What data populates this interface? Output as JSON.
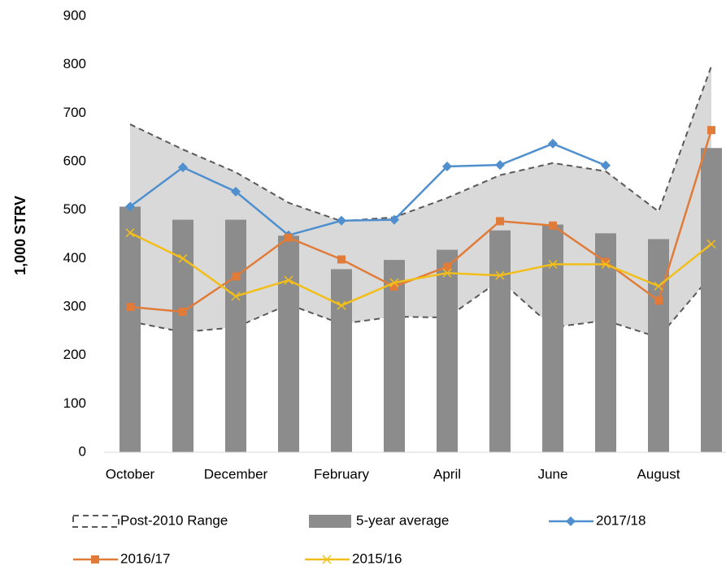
{
  "chart_data": {
    "type": "combo",
    "y_label": "1,000 STRV",
    "categories": [
      "October",
      null,
      "December",
      null,
      "February",
      null,
      "April",
      null,
      "June",
      null,
      "August",
      null
    ],
    "ylim": [
      0,
      900
    ],
    "yticks": [
      0,
      100,
      200,
      300,
      400,
      500,
      600,
      700,
      800,
      900
    ],
    "series": [
      {
        "name": "Post-2010 Range",
        "type": "range",
        "color": "#d9d9d9",
        "upper": [
          677,
          625,
          578,
          515,
          477,
          485,
          525,
          572,
          597,
          580,
          497,
          797
        ],
        "lower": [
          270,
          248,
          258,
          305,
          265,
          280,
          278,
          355,
          258,
          272,
          237,
          365
        ]
      },
      {
        "name": "5-year average",
        "type": "bar",
        "color": "#8c8c8c",
        "values": [
          507,
          480,
          480,
          447,
          378,
          397,
          418,
          458,
          470,
          452,
          440,
          628
        ]
      },
      {
        "name": "2017/18",
        "type": "line",
        "marker": "diamond",
        "color": "#4f8fce",
        "values": [
          507,
          588,
          538,
          448,
          478,
          480,
          590,
          593,
          637,
          592,
          null,
          null
        ]
      },
      {
        "name": "2016/17",
        "type": "line",
        "marker": "square",
        "color": "#e07b39",
        "values": [
          300,
          290,
          363,
          443,
          398,
          342,
          383,
          477,
          468,
          393,
          313,
          665
        ]
      },
      {
        "name": "2015/16",
        "type": "line",
        "marker": "x",
        "color": "#f2be1a",
        "values": [
          453,
          400,
          322,
          355,
          303,
          350,
          370,
          365,
          388,
          388,
          343,
          430
        ]
      }
    ]
  }
}
